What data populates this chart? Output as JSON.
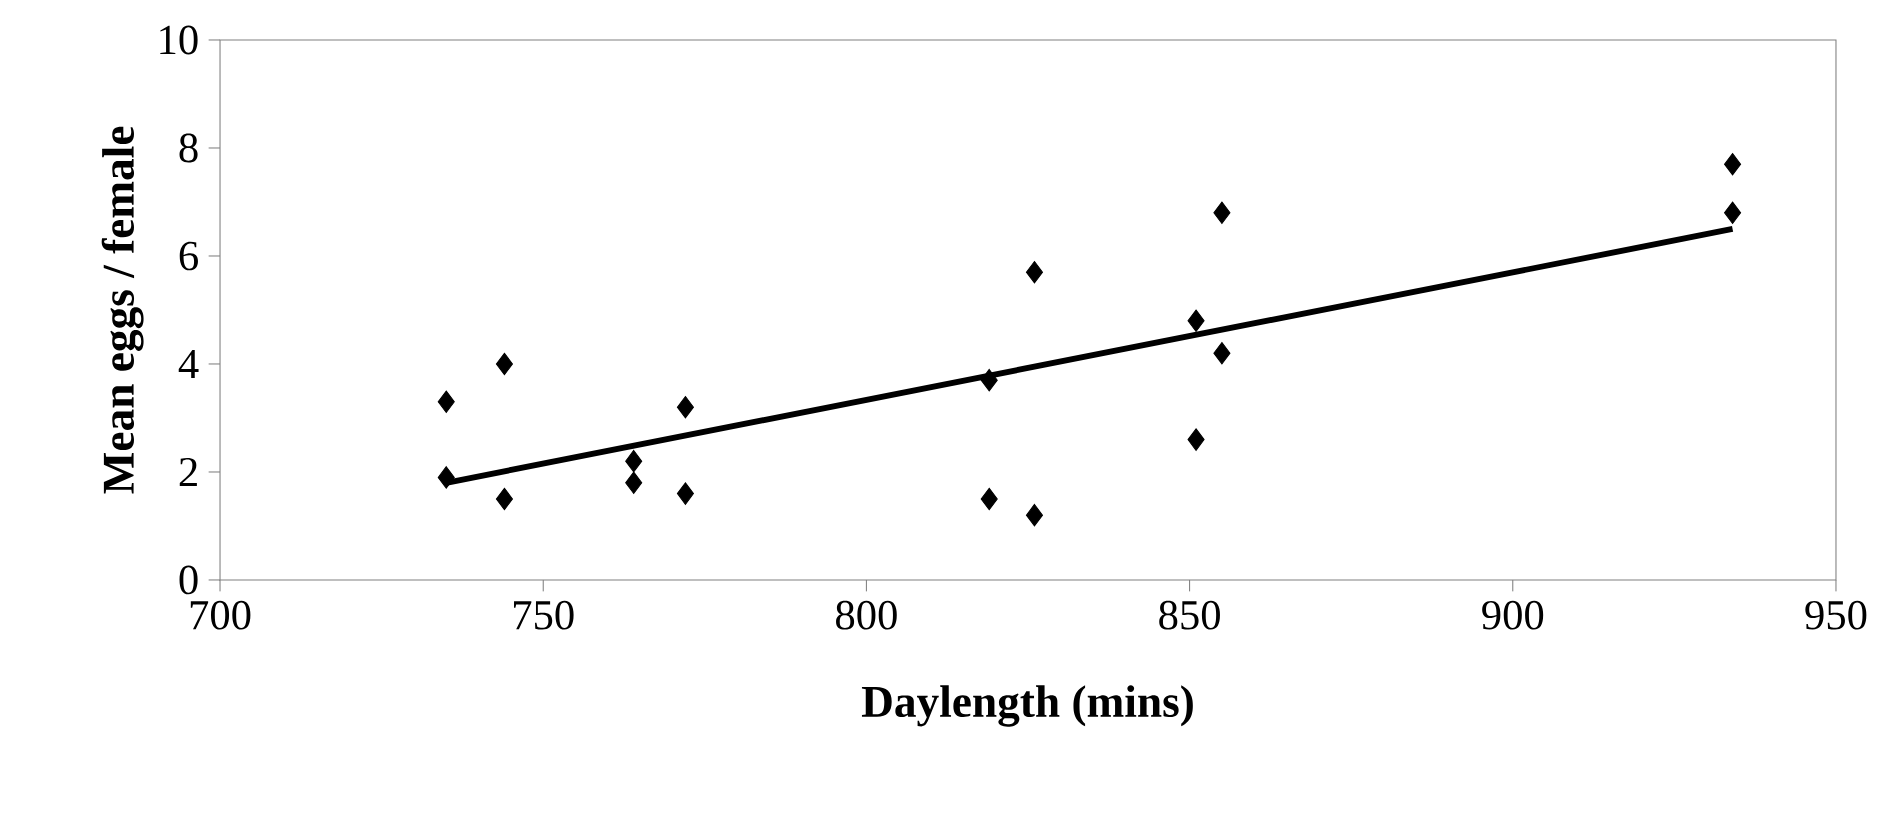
{
  "chart_data": {
    "type": "scatter",
    "xlabel": "Daylength (mins)",
    "ylabel": "Mean eggs / female",
    "xlim": [
      700,
      950
    ],
    "xticks": [
      700,
      750,
      800,
      850,
      900,
      950
    ],
    "ylim": [
      0,
      10
    ],
    "yticks": [
      0,
      2,
      4,
      6,
      8,
      10
    ],
    "marker": "diamond",
    "grid": false,
    "series": [
      {
        "color": "#000000",
        "x": [
          735,
          735,
          744,
          744,
          764,
          764,
          772,
          772,
          819,
          819,
          826,
          826,
          851,
          851,
          855,
          855,
          934,
          934
        ],
        "values": [
          3.3,
          1.9,
          4.0,
          1.5,
          2.2,
          1.8,
          3.2,
          1.6,
          3.7,
          1.5,
          5.7,
          1.2,
          4.8,
          2.6,
          6.8,
          4.2,
          7.7,
          6.8
        ]
      },
      {
        "type": "line",
        "color": "#000000",
        "marker": "none",
        "x": [
          735,
          934
        ],
        "values": [
          1.8,
          6.5
        ]
      }
    ]
  }
}
